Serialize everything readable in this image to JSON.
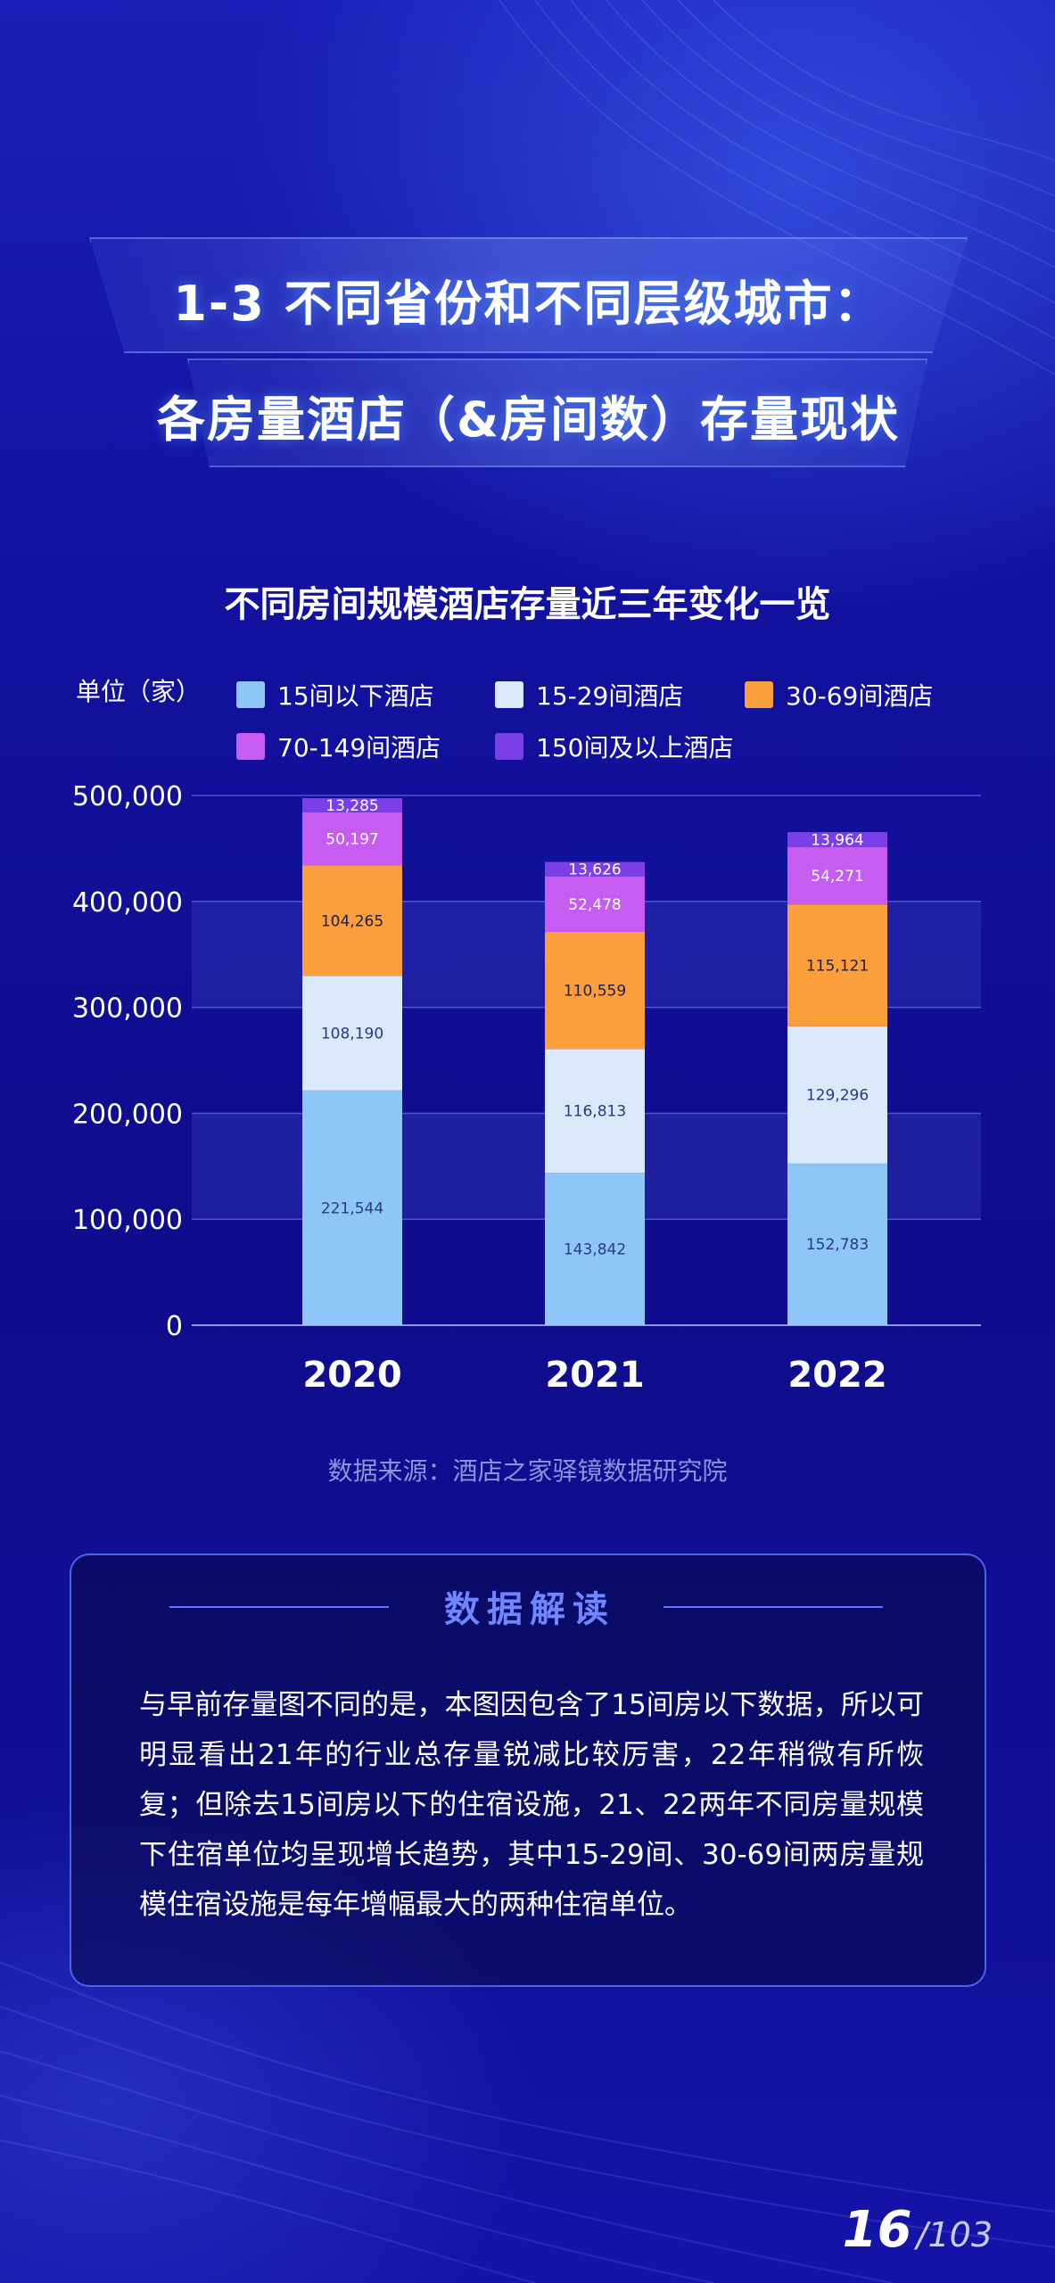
{
  "header": {
    "title_line1": "1-3 不同省份和不同层级城市：",
    "title_line2": "各房量酒店（&房间数）存量现状"
  },
  "chart_data": {
    "type": "bar",
    "stacked": true,
    "title": "不同房间规模酒店存量近三年变化一览",
    "unit_label": "单位（家）",
    "categories": [
      "2020",
      "2021",
      "2022"
    ],
    "series": [
      {
        "name": "15间以下酒店",
        "color": "#8ec6f8",
        "values": [
          221544,
          143842,
          152783
        ]
      },
      {
        "name": "15-29间酒店",
        "color": "#dbe9fb",
        "values": [
          108190,
          116813,
          129296
        ]
      },
      {
        "name": "30-69间酒店",
        "color": "#fa9f3c",
        "values": [
          104265,
          110559,
          115121
        ]
      },
      {
        "name": "70-149间酒店",
        "color": "#c65cf0",
        "values": [
          50197,
          52478,
          54271
        ]
      },
      {
        "name": "150间及以上酒店",
        "color": "#7b3fe8",
        "values": [
          13285,
          13626,
          13964
        ]
      }
    ],
    "data_labels": [
      [
        "221,544",
        "143,842",
        "152,783"
      ],
      [
        "108,190",
        "116,813",
        "129,296"
      ],
      [
        "104,265",
        "110,559",
        "115,121"
      ],
      [
        "50,197",
        "52,478",
        "54,271"
      ],
      [
        "13,285",
        "13,626",
        "13,964"
      ]
    ],
    "ylim": [
      0,
      500000
    ],
    "yticks": [
      0,
      100000,
      200000,
      300000,
      400000,
      500000
    ],
    "ytick_labels": [
      "0",
      "100,000",
      "200,000",
      "300,000",
      "400,000",
      "500,000"
    ],
    "grid": true,
    "legend_position": "top"
  },
  "source": "数据来源：酒店之家驿镜数据研究院",
  "interpretation": {
    "title": "数据解读",
    "text": "与早前存量图不同的是，本图因包含了15间房以下数据，所以可明显看出21年的行业总存量锐减比较厉害，22年稍微有所恢复；但除去15间房以下的住宿设施，21、22两年不同房量规模下住宿单位均呈现增长趋势，其中15-29间、30-69间两房量规模住宿设施是每年增幅最大的两种住宿单位。"
  },
  "page": {
    "current": "16",
    "total": "/103"
  }
}
